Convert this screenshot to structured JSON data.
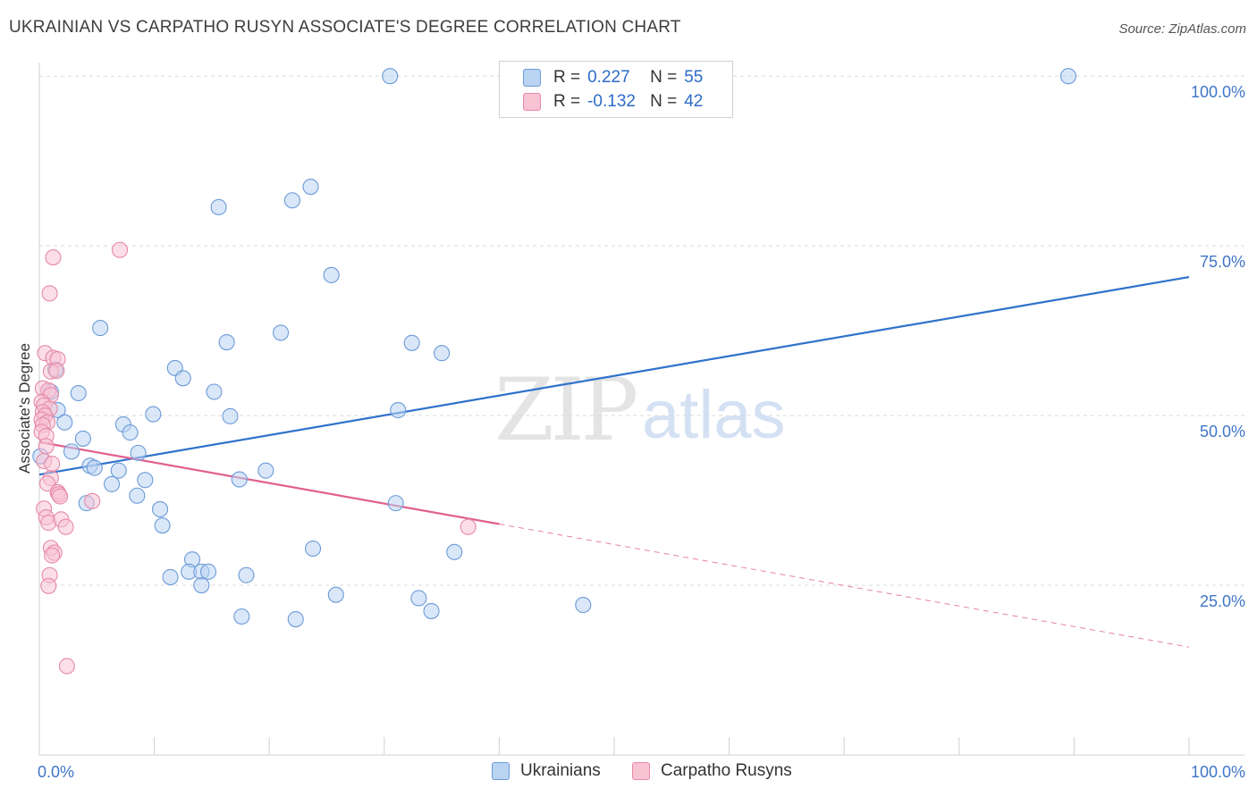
{
  "title": "UKRAINIAN VS CARPATHO RUSYN ASSOCIATE'S DEGREE CORRELATION CHART",
  "source": "Source: ZipAtlas.com",
  "colors": {
    "ukrainians_fill": "#b9d3f3",
    "ukrainians_stroke": "#6c9ad8",
    "ukrainians_line": "#2f72cc",
    "rusyns_fill": "#f8c3d3",
    "rusyns_stroke": "#e68aa8",
    "rusyns_line": "#e0608e",
    "axis_text": "#3f76c6",
    "grid": "#d9d9d9"
  },
  "legend": {
    "r_label": "R =",
    "n_label": "N =",
    "ukrainians_r": "0.227",
    "ukrainians_n": "55",
    "rusyns_r": "-0.132",
    "rusyns_n": "42"
  },
  "chart_data": {
    "type": "scatter",
    "title": "UKRAINIAN VS CARPATHO RUSYN ASSOCIATE'S DEGREE CORRELATION CHART",
    "xlabel": "",
    "ylabel": "Associate's Degree",
    "xlim": [
      0,
      100
    ],
    "ylim": [
      0,
      102
    ],
    "x_tick_labels": [
      "0.0%",
      "100.0%"
    ],
    "y_ticks": [
      25,
      50,
      75,
      100
    ],
    "y_tick_labels": [
      "25.0%",
      "50.0%",
      "75.0%",
      "100.0%"
    ],
    "watermark": "ZIPatlas",
    "series": [
      {
        "name": "Ukrainians",
        "r": 0.227,
        "n": 55,
        "trend": {
          "x": [
            0,
            100
          ],
          "y": [
            41.3,
            70.4
          ],
          "dashed_from": null
        },
        "points": [
          [
            30.5,
            100
          ],
          [
            89.5,
            100
          ],
          [
            23.6,
            83.7
          ],
          [
            22.0,
            81.7
          ],
          [
            15.6,
            80.7
          ],
          [
            25.4,
            70.7
          ],
          [
            5.3,
            62.9
          ],
          [
            16.3,
            60.8
          ],
          [
            21.0,
            62.2
          ],
          [
            32.4,
            60.7
          ],
          [
            35.0,
            59.2
          ],
          [
            11.8,
            57.0
          ],
          [
            12.5,
            55.5
          ],
          [
            3.4,
            53.3
          ],
          [
            15.2,
            53.5
          ],
          [
            1.0,
            53.5
          ],
          [
            1.6,
            50.8
          ],
          [
            9.9,
            50.2
          ],
          [
            16.6,
            49.9
          ],
          [
            31.2,
            50.8
          ],
          [
            2.2,
            49.0
          ],
          [
            7.3,
            48.7
          ],
          [
            7.9,
            47.5
          ],
          [
            3.8,
            46.6
          ],
          [
            2.8,
            44.7
          ],
          [
            8.6,
            44.5
          ],
          [
            0.1,
            44.0
          ],
          [
            4.4,
            42.6
          ],
          [
            6.9,
            41.9
          ],
          [
            4.8,
            42.3
          ],
          [
            9.2,
            40.5
          ],
          [
            17.4,
            40.6
          ],
          [
            19.7,
            41.9
          ],
          [
            6.3,
            39.9
          ],
          [
            8.5,
            38.2
          ],
          [
            4.1,
            37.1
          ],
          [
            31.0,
            37.1
          ],
          [
            10.5,
            36.2
          ],
          [
            10.7,
            33.8
          ],
          [
            23.8,
            30.4
          ],
          [
            36.1,
            29.9
          ],
          [
            13.3,
            28.8
          ],
          [
            13.0,
            27.0
          ],
          [
            14.1,
            27.0
          ],
          [
            14.7,
            27.0
          ],
          [
            18.0,
            26.5
          ],
          [
            11.4,
            26.2
          ],
          [
            14.1,
            25.0
          ],
          [
            25.8,
            23.6
          ],
          [
            33.0,
            23.1
          ],
          [
            34.1,
            21.2
          ],
          [
            47.3,
            22.1
          ],
          [
            17.6,
            20.4
          ],
          [
            22.3,
            20.0
          ],
          [
            1.4,
            56.8
          ]
        ]
      },
      {
        "name": "Carpatho Rusyns",
        "r": -0.132,
        "n": 42,
        "trend": {
          "x": [
            0,
            100
          ],
          "y": [
            46.1,
            15.9
          ],
          "dashed_from": 40.0
        },
        "points": [
          [
            7.0,
            74.4
          ],
          [
            1.2,
            73.3
          ],
          [
            0.9,
            68.0
          ],
          [
            0.5,
            59.2
          ],
          [
            1.2,
            58.5
          ],
          [
            1.6,
            58.3
          ],
          [
            1.0,
            56.5
          ],
          [
            1.5,
            56.6
          ],
          [
            0.3,
            54.0
          ],
          [
            0.8,
            53.7
          ],
          [
            1.0,
            53.0
          ],
          [
            0.2,
            52.0
          ],
          [
            0.4,
            51.5
          ],
          [
            0.9,
            51.0
          ],
          [
            0.3,
            50.5
          ],
          [
            0.5,
            50.0
          ],
          [
            0.2,
            49.4
          ],
          [
            0.7,
            49.0
          ],
          [
            0.3,
            48.6
          ],
          [
            0.2,
            47.6
          ],
          [
            0.6,
            47.0
          ],
          [
            0.4,
            43.3
          ],
          [
            1.0,
            40.8
          ],
          [
            0.7,
            40.0
          ],
          [
            1.6,
            38.7
          ],
          [
            1.7,
            38.4
          ],
          [
            1.8,
            38.1
          ],
          [
            4.6,
            37.4
          ],
          [
            0.4,
            36.3
          ],
          [
            0.6,
            35.0
          ],
          [
            0.8,
            34.2
          ],
          [
            1.9,
            34.7
          ],
          [
            2.3,
            33.6
          ],
          [
            37.3,
            33.6
          ],
          [
            1.0,
            30.5
          ],
          [
            1.3,
            29.8
          ],
          [
            1.1,
            29.4
          ],
          [
            0.9,
            26.5
          ],
          [
            0.8,
            24.9
          ],
          [
            2.4,
            13.1
          ],
          [
            1.1,
            42.9
          ],
          [
            0.6,
            45.5
          ]
        ]
      }
    ]
  },
  "bottom_legend": {
    "ukrainians": "Ukrainians",
    "rusyns": "Carpatho Rusyns"
  }
}
